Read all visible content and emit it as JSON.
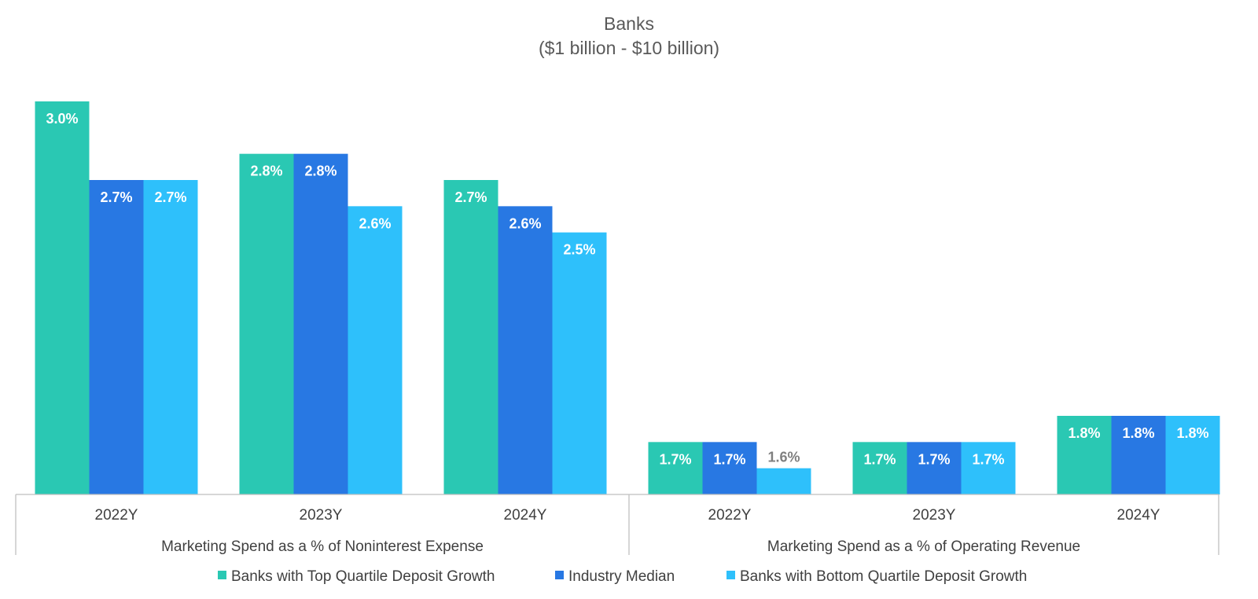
{
  "chart_data": {
    "type": "bar",
    "title": "Banks",
    "subtitle": "($1 billion - $10 billion)",
    "groups": [
      {
        "label": "Marketing Spend as a % of Noninterest Expense",
        "categories": [
          "2022Y",
          "2023Y",
          "2024Y"
        ]
      },
      {
        "label": "Marketing Spend as a % of Operating Revenue",
        "categories": [
          "2022Y",
          "2023Y",
          "2024Y"
        ]
      }
    ],
    "series": [
      {
        "name": "Banks with Top Quartile Deposit Growth",
        "color": "#2ac8b3",
        "values": [
          3.0,
          2.8,
          2.7,
          1.7,
          1.7,
          1.8
        ],
        "labels": [
          "3.0%",
          "2.8%",
          "2.7%",
          "1.7%",
          "1.7%",
          "1.8%"
        ]
      },
      {
        "name": "Industry Median",
        "color": "#2878e3",
        "values": [
          2.7,
          2.8,
          2.6,
          1.7,
          1.7,
          1.8
        ],
        "labels": [
          "2.7%",
          "2.8%",
          "2.6%",
          "1.7%",
          "1.7%",
          "1.8%"
        ]
      },
      {
        "name": "Banks with Bottom Quartile Deposit Growth",
        "color": "#2ec0fb",
        "values": [
          2.7,
          2.6,
          2.5,
          1.6,
          1.7,
          1.8
        ],
        "labels": [
          "2.7%",
          "2.6%",
          "2.5%",
          "1.6%",
          "1.7%",
          "1.8%"
        ]
      }
    ],
    "ylim": [
      1.5,
      3.1
    ],
    "grid": false,
    "legend_position": "bottom"
  }
}
